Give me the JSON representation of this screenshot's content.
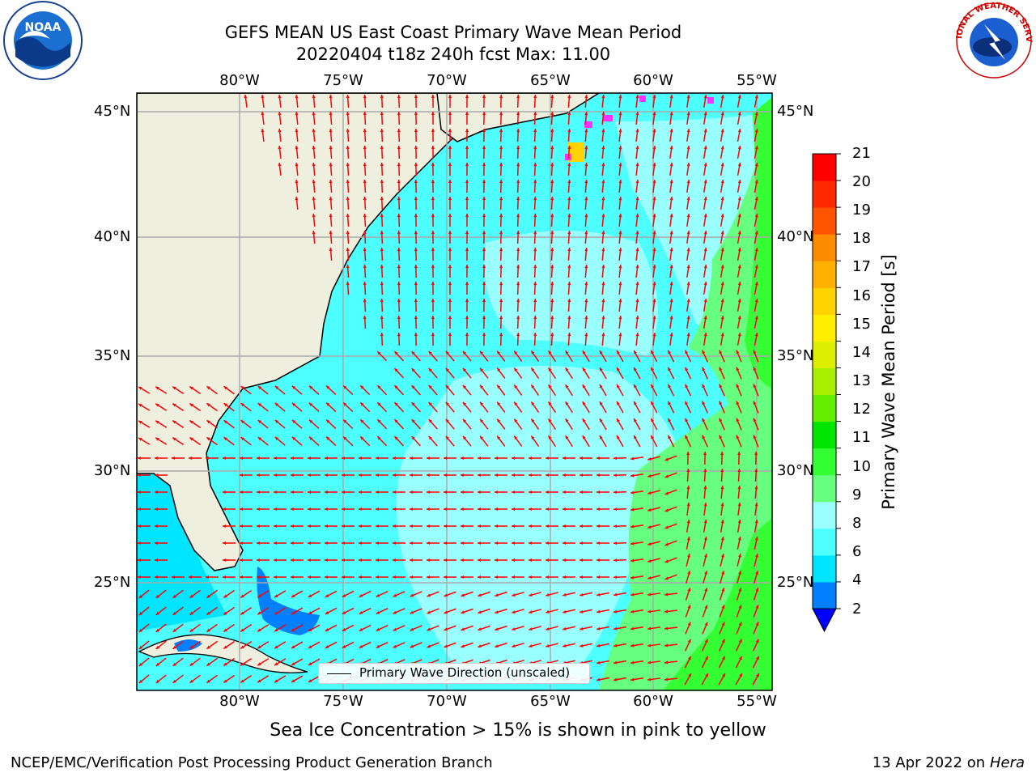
{
  "title": {
    "line1": "GEFS MEAN US East Coast Primary Wave Mean Period",
    "line2": "20220404 t18z 240h fcst   Max: 11.00"
  },
  "logos": {
    "left": "NOAA",
    "right_top": "NATIONAL WEATHER SERVICE"
  },
  "map": {
    "lon_labels": [
      "80°W",
      "75°W",
      "70°W",
      "65°W",
      "60°W",
      "55°W"
    ],
    "lat_labels": [
      "45°N",
      "40°N",
      "35°N",
      "30°N",
      "25°N"
    ],
    "extent": {
      "lon": [
        -85,
        -54
      ],
      "lat": [
        20.5,
        46
      ]
    },
    "land_color": "#efefdf",
    "arrow_color": "#ff0000"
  },
  "colorbar": {
    "label": "Primary Wave Mean Period [s]",
    "ticks": [
      "21",
      "20",
      "19",
      "18",
      "17",
      "16",
      "15",
      "14",
      "13",
      "12",
      "11",
      "10",
      "9",
      "8",
      "6",
      "4",
      "2"
    ],
    "colors": [
      "#0000ff",
      "#0080ff",
      "#00e5ff",
      "#4dffff",
      "#99ffff",
      "#66ff80",
      "#33ff33",
      "#00e600",
      "#66ee00",
      "#aaee00",
      "#ddee00",
      "#ffee00",
      "#ffd200",
      "#ffb000",
      "#ff8c00",
      "#ff5500",
      "#ff2a00",
      "#ff0000"
    ]
  },
  "legend": {
    "text": "Primary Wave Direction (unscaled)"
  },
  "sea_ice_note": "Sea Ice Concentration > 15% is shown in pink to yellow",
  "footer": {
    "left": "NCEP/EMC/Verification Post Processing Product Generation Branch",
    "right_date": "13 Apr 2022 on",
    "right_machine": "Hera"
  }
}
